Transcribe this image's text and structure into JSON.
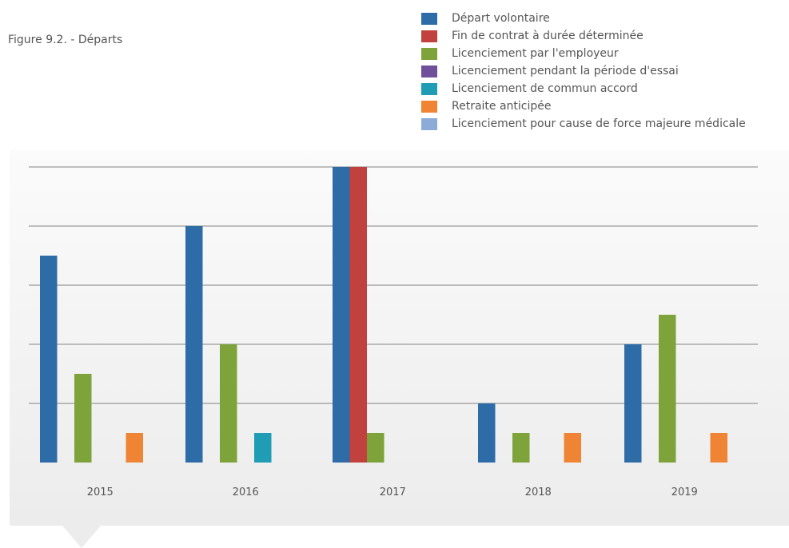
{
  "chart_data": {
    "type": "bar",
    "title": "Figure 9.2. - Départs",
    "categories": [
      "2015",
      "2016",
      "2017",
      "2018",
      "2019"
    ],
    "series": [
      {
        "name": "Départ volontaire",
        "color": "#2e6ca8",
        "values": [
          7,
          8,
          10,
          2,
          4
        ]
      },
      {
        "name": "Fin de contrat à durée déterminée",
        "color": "#c0413d",
        "values": [
          0,
          0,
          10,
          0,
          0
        ]
      },
      {
        "name": "Licenciement par l'employeur",
        "color": "#7ea33b",
        "values": [
          3,
          4,
          1,
          1,
          5
        ]
      },
      {
        "name": "Licenciement pendant la période d'essai",
        "color": "#6f4f9a",
        "values": [
          0,
          0,
          0,
          0,
          0
        ]
      },
      {
        "name": "Licenciement de commun accord",
        "color": "#1f9db5",
        "values": [
          0,
          1,
          0,
          0,
          0
        ]
      },
      {
        "name": "Retraite anticipée",
        "color": "#ee8434",
        "values": [
          1,
          0,
          0,
          1,
          1
        ]
      },
      {
        "name": "Licenciement pour cause de force majeure médicale",
        "color": "#8cabd6",
        "values": [
          0,
          0,
          0,
          0,
          0
        ]
      }
    ],
    "ylim": [
      0,
      10
    ],
    "ytick_step": 2,
    "y_tick_labels_visible": false,
    "grid": true,
    "legend_position": "top-right"
  }
}
